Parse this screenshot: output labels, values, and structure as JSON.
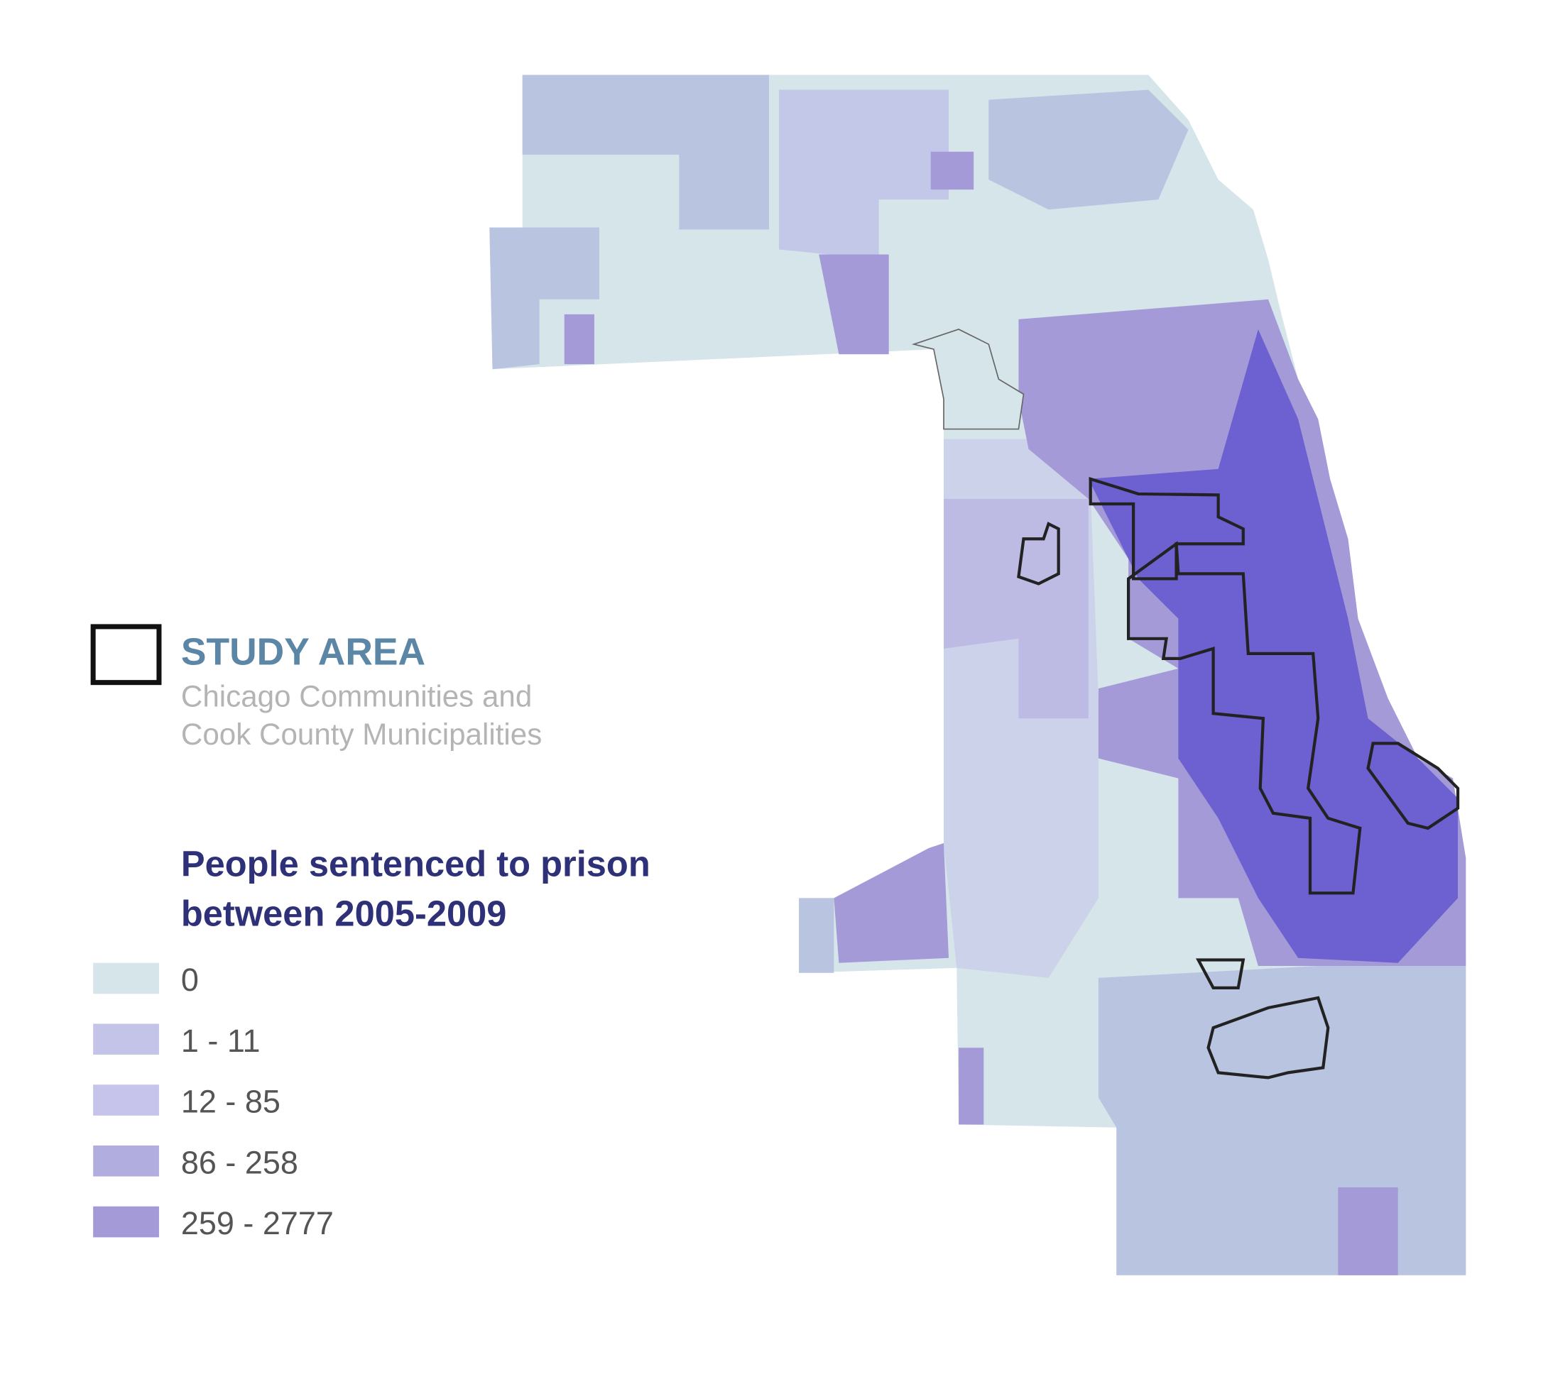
{
  "study_area": {
    "title": "STUDY AREA",
    "subtitle_lines": [
      "Chicago Communities and",
      "Cook County Municipalities"
    ]
  },
  "legend": {
    "title_lines": [
      "People sentenced to prison",
      "between 2005-2009"
    ],
    "items": [
      {
        "label": "0",
        "color": "#d5e5ea"
      },
      {
        "label": "1 - 11",
        "color": "#c4c4e8"
      },
      {
        "label": "12 - 85",
        "color": "#c6c4ea"
      },
      {
        "label": "86 - 258",
        "color": "#b2addf"
      },
      {
        "label": "259 - 2777",
        "color": "#a49ad8"
      }
    ]
  }
}
